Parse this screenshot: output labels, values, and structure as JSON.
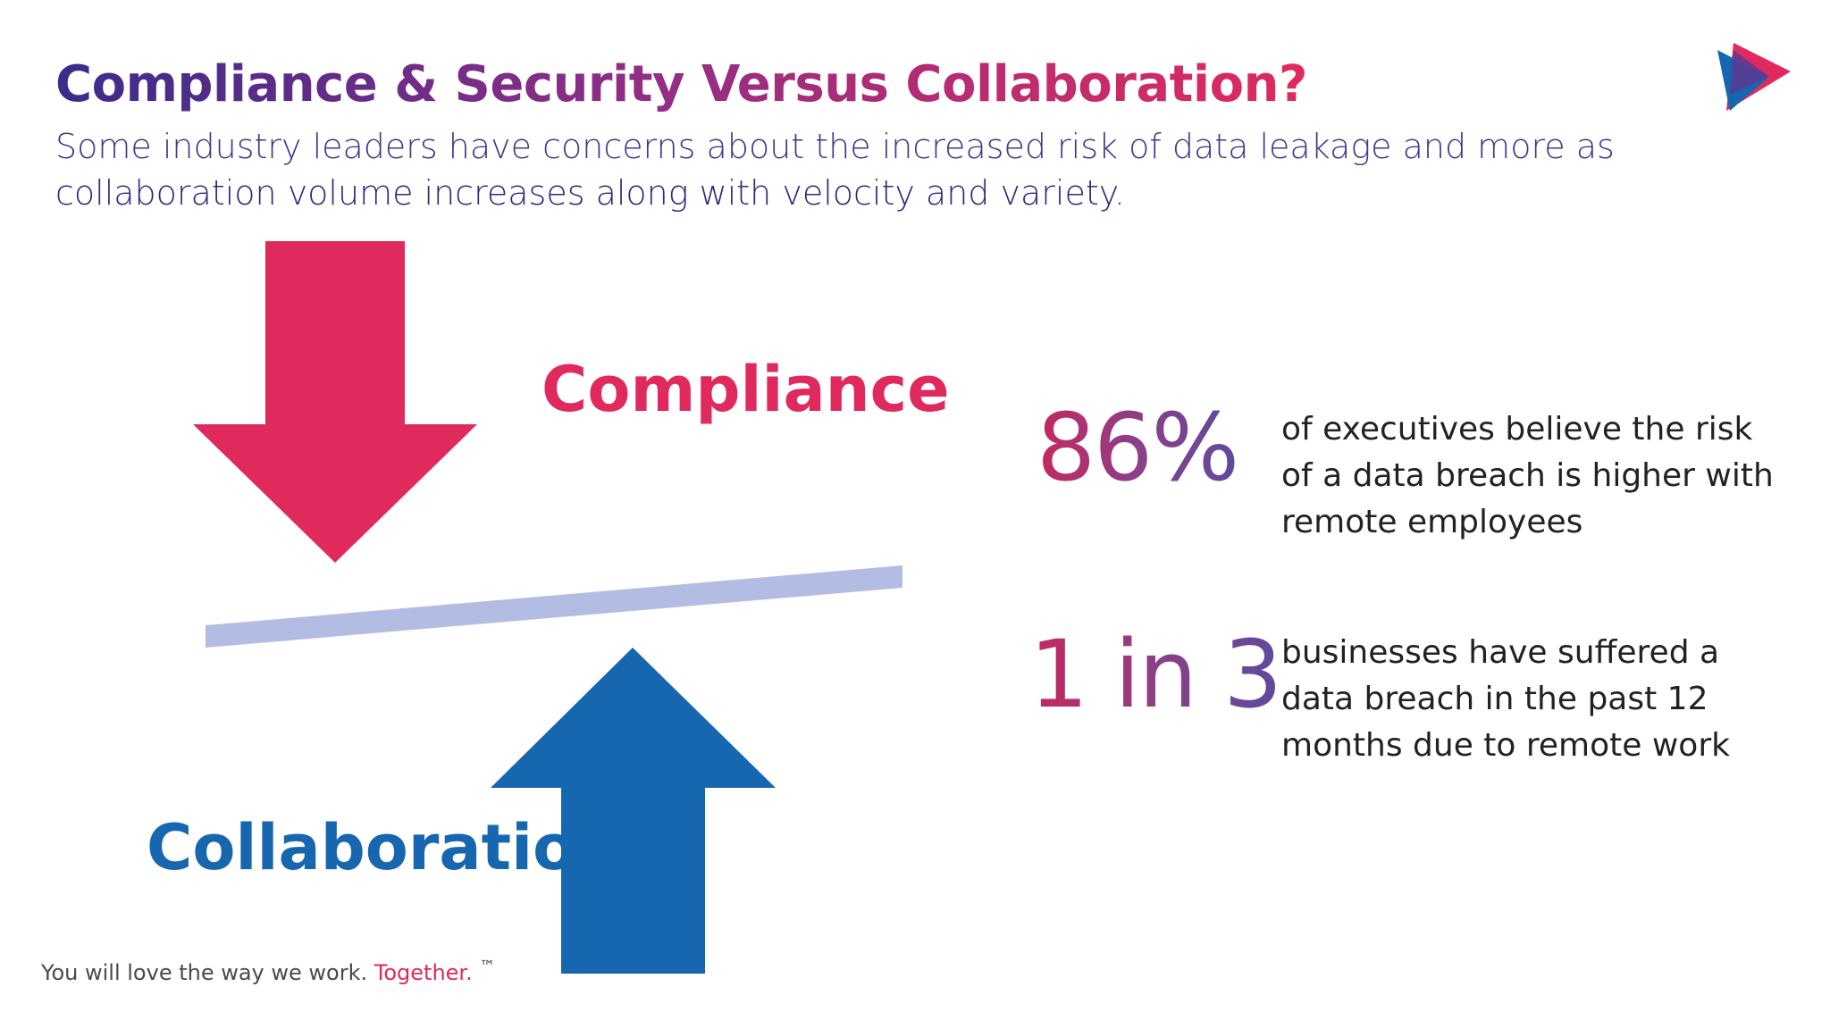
{
  "slide": {
    "title": "Compliance & Security Versus Collaboration?",
    "subtitle_light": "Some industry leaders have concerns about the increased risk of data leakage and more as",
    "subtitle_strong": "collaboration volume increases along with velocity and variety",
    "subtitle_end": "."
  },
  "diagram": {
    "compliance_label": "Compliance",
    "collaboration_label": "Collaboration",
    "compliance_arrow_color": "#e02a5e",
    "collaboration_arrow_color": "#1766b0",
    "balance_bar_color": "#b3bde3",
    "compliance_arrow_icon": "arrow-down-icon",
    "collaboration_arrow_icon": "arrow-up-icon"
  },
  "stats": [
    {
      "value": "86%",
      "text": "of executives believe the risk of a data breach is higher with remote employees"
    },
    {
      "value": "1 in 3",
      "text": "businesses have suffered a data breach in the past 12 months due to remote work"
    }
  ],
  "footer": {
    "text": "You will love the way we work.",
    "highlight": "Together.",
    "tm": "™"
  },
  "brand": {
    "logo_icon": "play-logo-icon",
    "accent_pink": "#e02a5e",
    "accent_blue": "#1766b0",
    "accent_purple": "#3b2b8a"
  }
}
